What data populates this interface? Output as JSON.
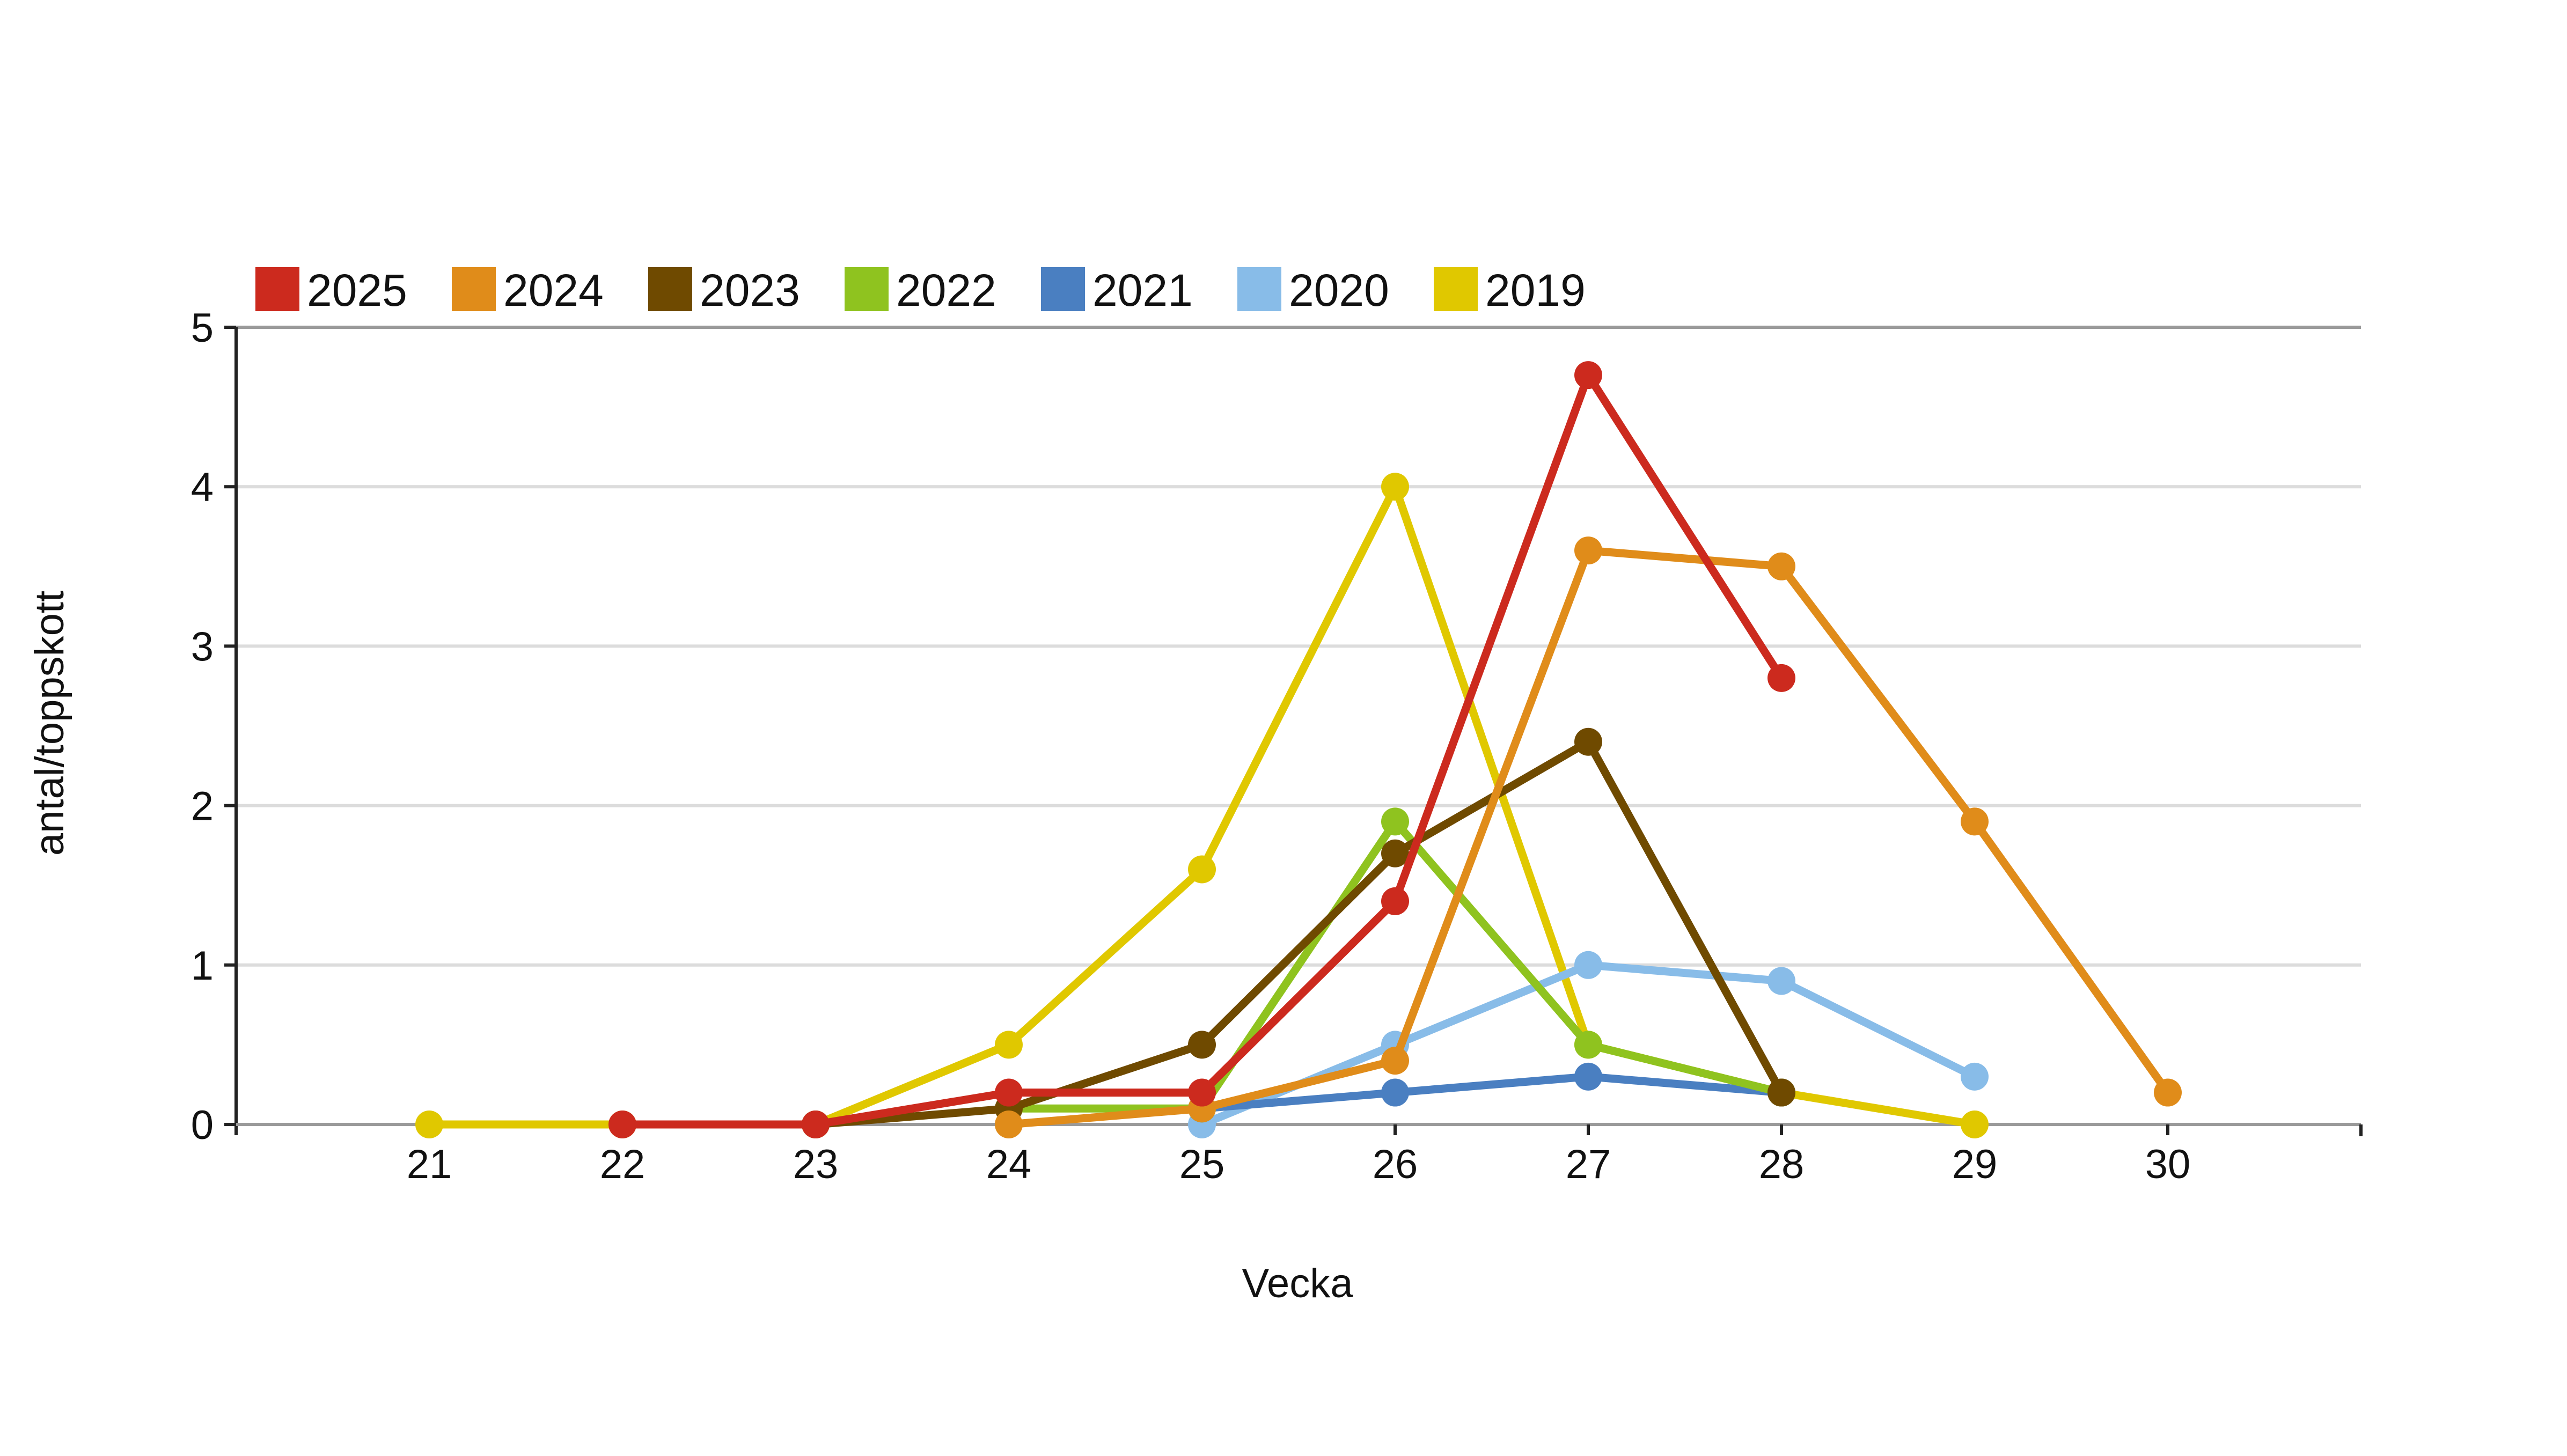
{
  "chart_data": {
    "type": "line",
    "title": "",
    "xlabel": "Vecka",
    "ylabel": "antal/toppskott",
    "xlim": [
      20,
      31
    ],
    "ylim": [
      0,
      5
    ],
    "x_ticks": [
      "21",
      "22",
      "23",
      "24",
      "25",
      "26",
      "27",
      "28",
      "29",
      "30"
    ],
    "y_ticks": [
      "0",
      "1",
      "2",
      "3",
      "4",
      "5"
    ],
    "grid": "horizontal",
    "legend_position": "top-left",
    "series": [
      {
        "name": "2019",
        "color": "#e0c800",
        "points": [
          [
            21,
            0
          ],
          [
            22,
            0
          ],
          [
            23,
            0
          ],
          [
            24,
            0.5
          ],
          [
            25,
            1.6
          ],
          [
            26,
            4.0
          ],
          [
            27,
            0.5
          ],
          [
            28,
            0.2
          ],
          [
            29,
            0
          ]
        ]
      },
      {
        "name": "2020",
        "color": "#88bce8",
        "points": [
          [
            25,
            0
          ],
          [
            26,
            0.5
          ],
          [
            27,
            1.0
          ],
          [
            28,
            0.9
          ],
          [
            29,
            0.3
          ]
        ]
      },
      {
        "name": "2021",
        "color": "#4a7fc1",
        "points": [
          [
            25,
            0.1
          ],
          [
            26,
            0.2
          ],
          [
            27,
            0.3
          ],
          [
            28,
            0.2
          ]
        ]
      },
      {
        "name": "2022",
        "color": "#8fc31f",
        "points": [
          [
            24,
            0.1
          ],
          [
            25,
            0.1
          ],
          [
            26,
            1.9
          ],
          [
            27,
            0.5
          ],
          [
            28,
            0.2
          ]
        ]
      },
      {
        "name": "2023",
        "color": "#6f4a00",
        "points": [
          [
            23,
            0
          ],
          [
            24,
            0.1
          ],
          [
            25,
            0.5
          ],
          [
            26,
            1.7
          ],
          [
            27,
            2.4
          ],
          [
            28,
            0.2
          ]
        ]
      },
      {
        "name": "2024",
        "color": "#e08c1a",
        "points": [
          [
            24,
            0
          ],
          [
            25,
            0.1
          ],
          [
            26,
            0.4
          ],
          [
            27,
            3.6
          ],
          [
            28,
            3.5
          ],
          [
            29,
            1.9
          ],
          [
            30,
            0.2
          ]
        ]
      },
      {
        "name": "2025",
        "color": "#cc2a1e",
        "points": [
          [
            22,
            0
          ],
          [
            23,
            0
          ],
          [
            24,
            0.2
          ],
          [
            25,
            0.2
          ],
          [
            26,
            1.4
          ],
          [
            27,
            4.7
          ],
          [
            28,
            2.8
          ]
        ]
      }
    ],
    "legend_order": [
      "2025",
      "2024",
      "2023",
      "2022",
      "2021",
      "2020",
      "2019"
    ]
  }
}
